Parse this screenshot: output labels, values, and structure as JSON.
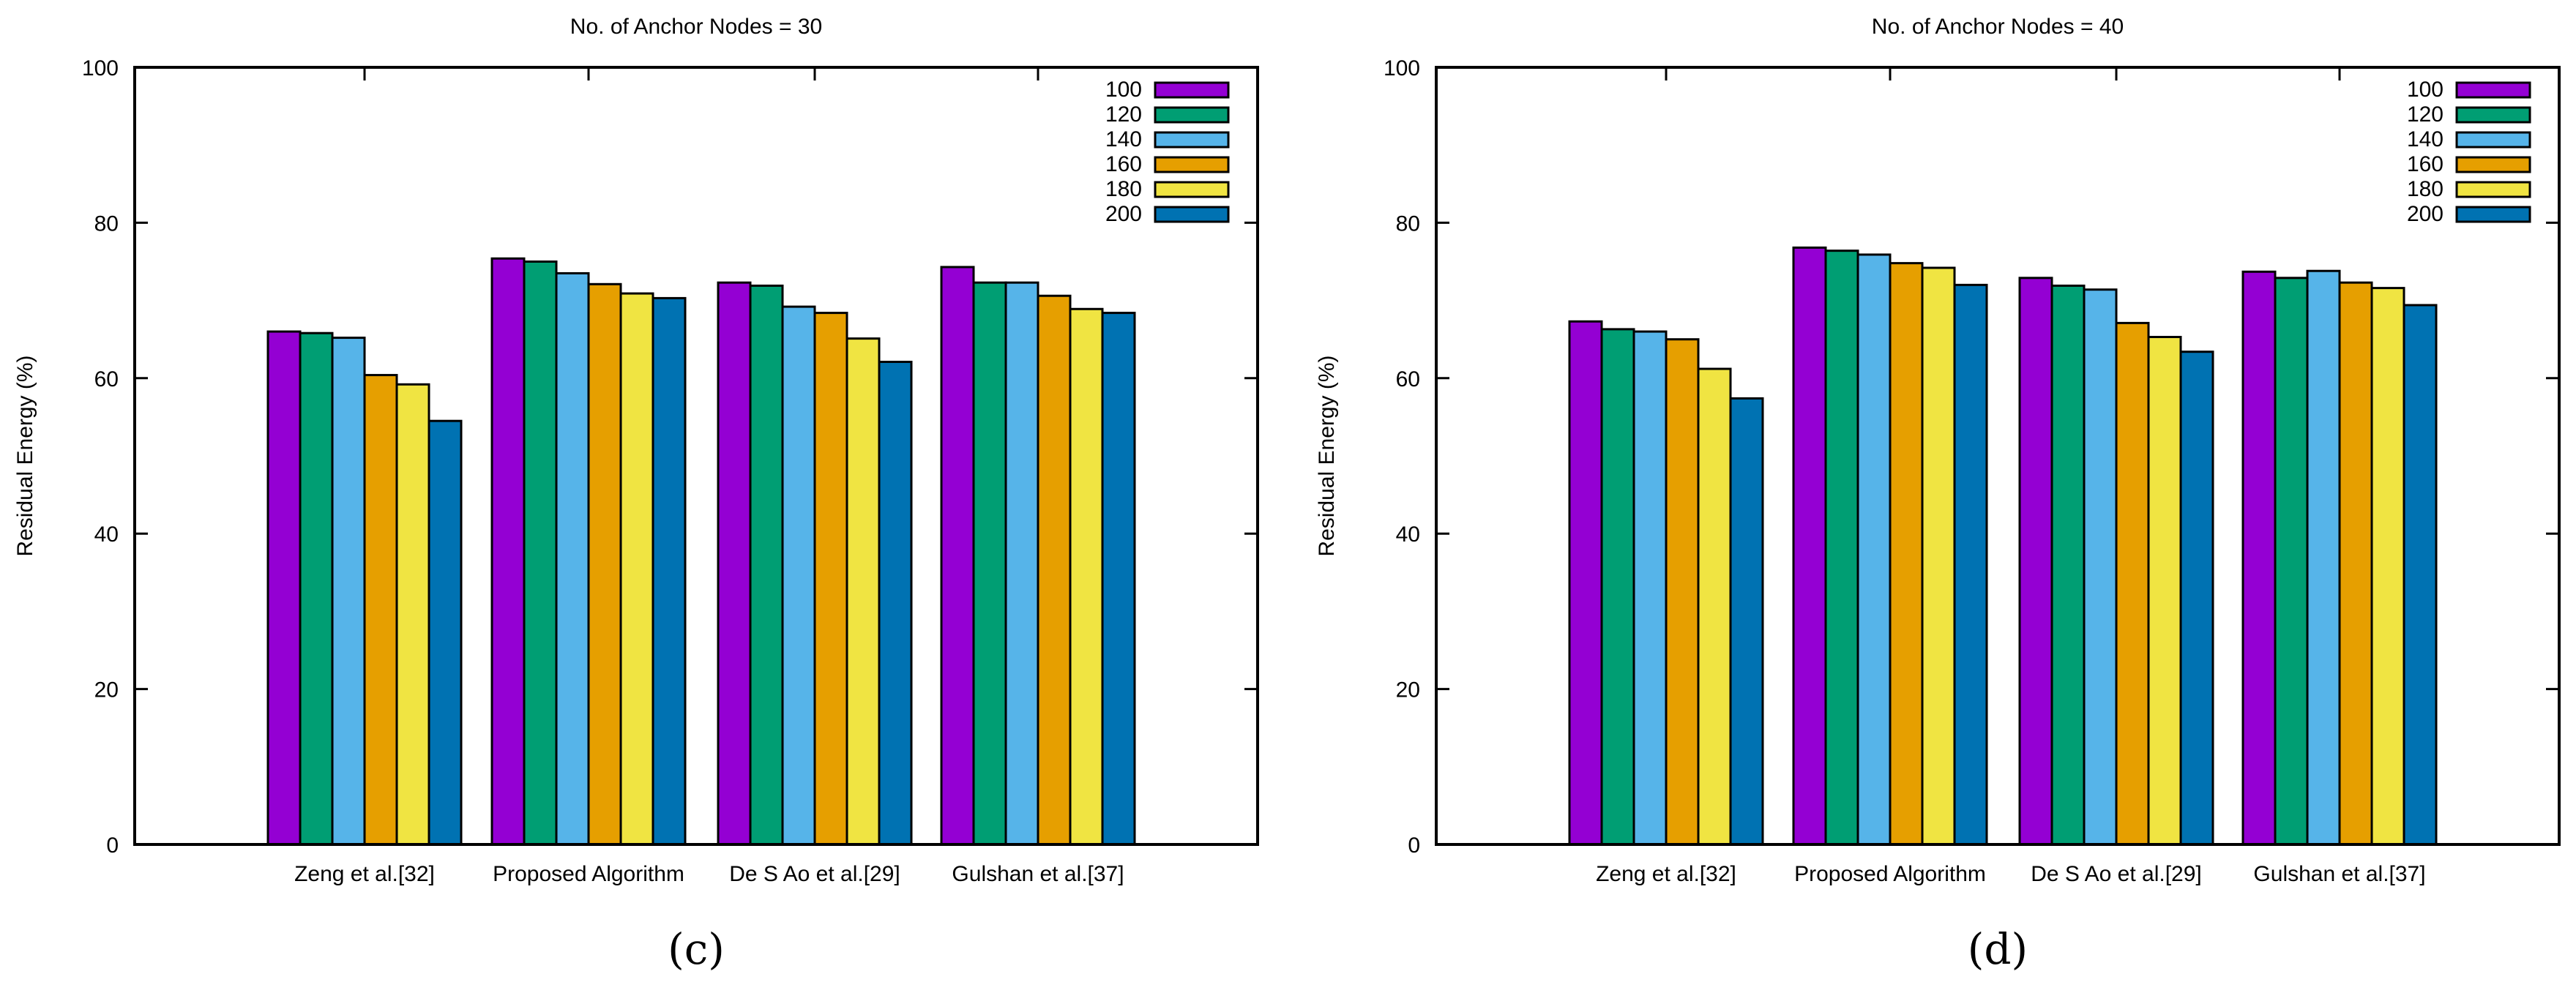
{
  "colors": {
    "series": [
      "#9400d3",
      "#009e73",
      "#56b4e9",
      "#e69f00",
      "#f0e442",
      "#0072b2"
    ],
    "axis": "#000000",
    "background": "#ffffff"
  },
  "chart_data": [
    {
      "type": "bar",
      "panel_label": "(c)",
      "title": "No. of Anchor Nodes = 30",
      "xlabel": "",
      "ylabel": "Residual Energy (%)",
      "ylim": [
        0,
        100
      ],
      "yticks": [
        0,
        20,
        40,
        60,
        80,
        100
      ],
      "grid": false,
      "legend_position": "top-right",
      "categories": [
        "Zeng et al.[32]",
        "Proposed Algorithm",
        "De S Ao et al.[29]",
        "Gulshan et al.[37]"
      ],
      "series": [
        {
          "name": "100",
          "values": [
            66.0,
            75.4,
            72.3,
            74.3
          ]
        },
        {
          "name": "120",
          "values": [
            65.8,
            75.0,
            71.9,
            72.3
          ]
        },
        {
          "name": "140",
          "values": [
            65.2,
            73.5,
            69.2,
            72.3
          ]
        },
        {
          "name": "160",
          "values": [
            60.4,
            72.1,
            68.4,
            70.6
          ]
        },
        {
          "name": "180",
          "values": [
            59.2,
            70.9,
            65.1,
            68.9
          ]
        },
        {
          "name": "200",
          "values": [
            54.5,
            70.3,
            62.1,
            68.4
          ]
        }
      ]
    },
    {
      "type": "bar",
      "panel_label": "(d)",
      "title": "No. of Anchor Nodes = 40",
      "xlabel": "",
      "ylabel": "Residual Energy (%)",
      "ylim": [
        0,
        100
      ],
      "yticks": [
        0,
        20,
        40,
        60,
        80,
        100
      ],
      "grid": false,
      "legend_position": "top-right",
      "categories": [
        "Zeng et al.[32]",
        "Proposed Algorithm",
        "De S Ao et al.[29]",
        "Gulshan et al.[37]"
      ],
      "series": [
        {
          "name": "100",
          "values": [
            67.3,
            76.8,
            72.9,
            73.7
          ]
        },
        {
          "name": "120",
          "values": [
            66.3,
            76.4,
            71.9,
            72.9
          ]
        },
        {
          "name": "140",
          "values": [
            66.0,
            75.9,
            71.4,
            73.8
          ]
        },
        {
          "name": "160",
          "values": [
            65.0,
            74.8,
            67.1,
            72.3
          ]
        },
        {
          "name": "180",
          "values": [
            61.2,
            74.2,
            65.3,
            71.6
          ]
        },
        {
          "name": "200",
          "values": [
            57.4,
            72.0,
            63.4,
            69.4
          ]
        }
      ]
    }
  ]
}
